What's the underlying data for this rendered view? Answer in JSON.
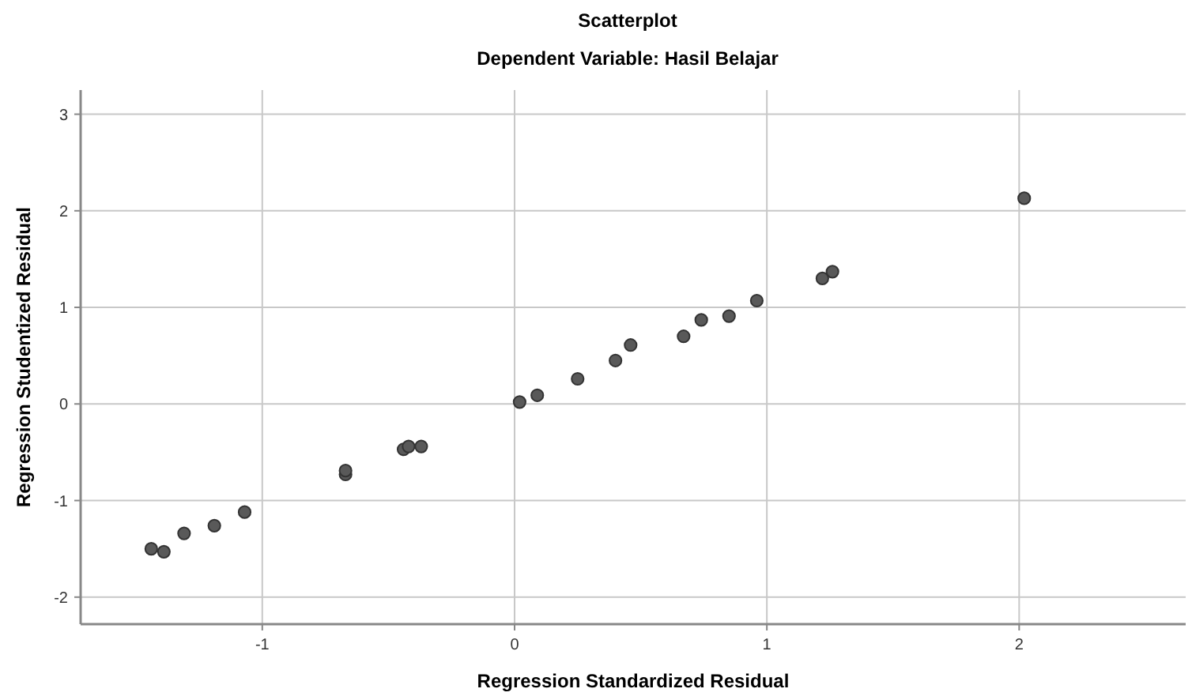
{
  "chart_data": {
    "type": "scatter",
    "title": "Scatterplot",
    "subtitle": "Dependent Variable: Hasil Belajar",
    "xlabel": "Regression Standardized Residual",
    "ylabel": "Regression Studentized Residual",
    "xlim": [
      -1.72,
      2.66
    ],
    "ylim": [
      -2.28,
      3.25
    ],
    "xticks": [
      -1,
      0,
      1,
      2
    ],
    "yticks": [
      -2,
      -1,
      0,
      1,
      2,
      3
    ],
    "grid": true,
    "marker": "circle",
    "series": [
      {
        "color": "#595959",
        "x": [
          -1.44,
          -1.39,
          -1.31,
          -1.19,
          -1.07,
          -0.67,
          -0.67,
          -0.44,
          -0.42,
          -0.37,
          0.02,
          0.09,
          0.25,
          0.4,
          0.46,
          0.67,
          0.74,
          0.85,
          0.96,
          1.22,
          1.26,
          2.02
        ],
        "values": [
          -1.5,
          -1.53,
          -1.34,
          -1.26,
          -1.12,
          -0.73,
          -0.69,
          -0.47,
          -0.44,
          -0.44,
          0.02,
          0.09,
          0.26,
          0.45,
          0.61,
          0.7,
          0.87,
          0.91,
          1.07,
          1.3,
          1.37,
          2.13
        ]
      }
    ]
  }
}
